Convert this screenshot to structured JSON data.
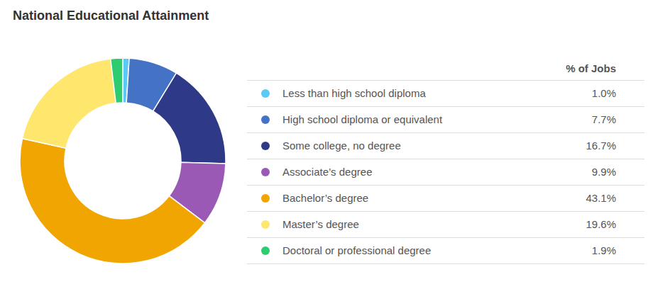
{
  "chart_data": {
    "type": "pie",
    "title": "National Educational Attainment",
    "legend_title": "% of Jobs",
    "categories": [
      "Less than high school diploma",
      "High school diploma or equivalent",
      "Some college, no degree",
      "Associate’s degree",
      "Bachelor’s degree",
      "Master’s degree",
      "Doctoral or professional degree"
    ],
    "values": [
      1.0,
      7.7,
      16.7,
      9.9,
      43.1,
      19.6,
      1.9
    ],
    "value_labels": [
      "1.0%",
      "7.7%",
      "16.7%",
      "9.9%",
      "43.1%",
      "19.6%",
      "1.9%"
    ],
    "colors": [
      "#5BC8F5",
      "#4472C4",
      "#2E3A87",
      "#9B59B6",
      "#F0A500",
      "#FFE66D",
      "#2ECC71"
    ],
    "legend": "right"
  }
}
